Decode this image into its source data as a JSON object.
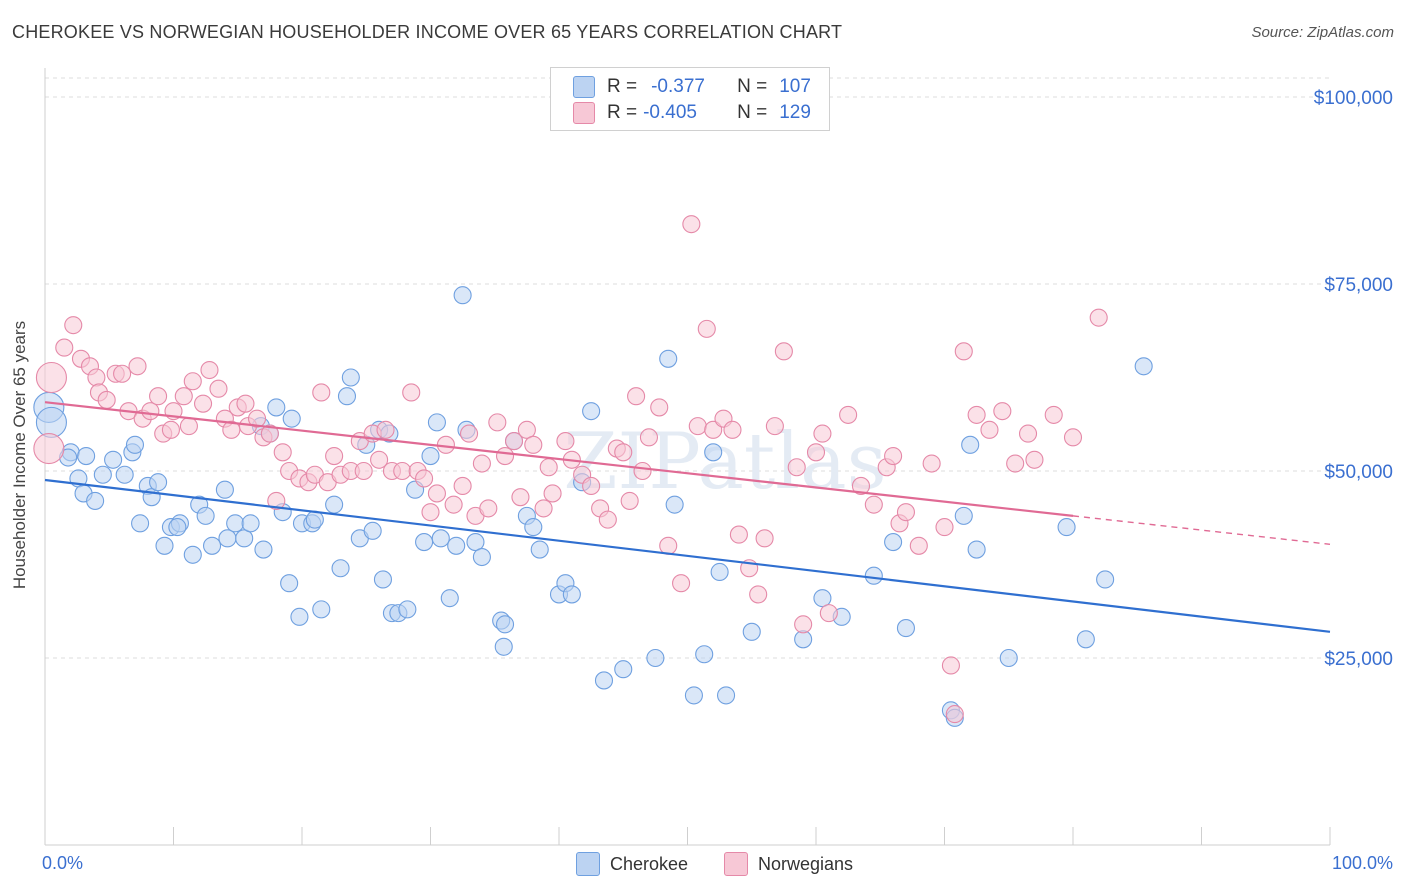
{
  "title": "CHEROKEE VS NORWEGIAN HOUSEHOLDER INCOME OVER 65 YEARS CORRELATION CHART",
  "source": "Source: ZipAtlas.com",
  "watermark": "ZIPatlas",
  "legend": {
    "rows": [
      {
        "r_label": "R =",
        "r_value": "-0.377",
        "n_label": "N =",
        "n_value": "107",
        "color": "#6fa0e0",
        "fill": "#bcd3f2"
      },
      {
        "r_label": "R =",
        "r_value": "-0.405",
        "n_label": "N =",
        "n_value": "129",
        "color": "#e589a8",
        "fill": "#f7c8d6"
      }
    ]
  },
  "bottom_legend": [
    {
      "label": "Cherokee",
      "fill": "#bcd3f2",
      "color": "#6fa0e0"
    },
    {
      "label": "Norwegians",
      "fill": "#f7c8d6",
      "color": "#e589a8"
    }
  ],
  "chart_data": {
    "type": "scatter",
    "title": "CHEROKEE VS NORWEGIAN HOUSEHOLDER INCOME OVER 65 YEARS CORRELATION CHART",
    "xlabel": "",
    "ylabel": "Householder Income Over 65 years",
    "xlim": [
      0,
      100
    ],
    "ylim": [
      0,
      105000
    ],
    "x_tick_labels": [
      "0.0%",
      "100.0%"
    ],
    "y_ticks": [
      25000,
      50000,
      75000,
      100000
    ],
    "y_tick_labels": [
      "$25,000",
      "$50,000",
      "$75,000",
      "$100,000"
    ],
    "series": [
      {
        "name": "Cherokee",
        "color": "#6fa0e0",
        "fill": "#bcd3f2",
        "trend": {
          "x0": 0,
          "y0": 48800,
          "x1": 100,
          "y1": 28500,
          "solid_to": 100
        },
        "points": [
          [
            0.3,
            58500
          ],
          [
            0.5,
            56500
          ],
          [
            2.0,
            52500
          ],
          [
            1.8,
            51800
          ],
          [
            2.6,
            49000
          ],
          [
            3.2,
            52000
          ],
          [
            3.0,
            47000
          ],
          [
            3.9,
            46000
          ],
          [
            4.5,
            49500
          ],
          [
            5.3,
            51500
          ],
          [
            6.2,
            49500
          ],
          [
            6.8,
            52500
          ],
          [
            7.0,
            53500
          ],
          [
            7.4,
            43000
          ],
          [
            8.0,
            48000
          ],
          [
            8.3,
            46500
          ],
          [
            8.8,
            48500
          ],
          [
            9.3,
            40000
          ],
          [
            9.8,
            42500
          ],
          [
            10.5,
            43000
          ],
          [
            10.3,
            42500
          ],
          [
            11.5,
            38800
          ],
          [
            12.0,
            45500
          ],
          [
            12.5,
            44000
          ],
          [
            13.0,
            40000
          ],
          [
            14.0,
            47500
          ],
          [
            14.2,
            41000
          ],
          [
            14.8,
            43000
          ],
          [
            15.5,
            41000
          ],
          [
            16.0,
            43000
          ],
          [
            16.8,
            56000
          ],
          [
            17.0,
            39500
          ],
          [
            17.5,
            55000
          ],
          [
            18.0,
            58500
          ],
          [
            18.5,
            44500
          ],
          [
            19.2,
            57000
          ],
          [
            19.0,
            35000
          ],
          [
            19.8,
            30500
          ],
          [
            20.0,
            43000
          ],
          [
            20.8,
            43000
          ],
          [
            21.0,
            43500
          ],
          [
            21.5,
            31500
          ],
          [
            22.5,
            45500
          ],
          [
            23.0,
            37000
          ],
          [
            23.5,
            60000
          ],
          [
            23.8,
            62500
          ],
          [
            24.5,
            41000
          ],
          [
            25.0,
            53500
          ],
          [
            25.5,
            42000
          ],
          [
            26.0,
            55500
          ],
          [
            26.3,
            35500
          ],
          [
            26.8,
            55000
          ],
          [
            27.0,
            31000
          ],
          [
            27.5,
            31000
          ],
          [
            28.2,
            31500
          ],
          [
            28.8,
            47500
          ],
          [
            29.5,
            40500
          ],
          [
            30.0,
            52000
          ],
          [
            30.5,
            56500
          ],
          [
            30.8,
            41000
          ],
          [
            31.5,
            33000
          ],
          [
            32.0,
            40000
          ],
          [
            32.5,
            73500
          ],
          [
            32.8,
            55500
          ],
          [
            33.5,
            40500
          ],
          [
            34.0,
            38500
          ],
          [
            35.5,
            30000
          ],
          [
            35.7,
            26500
          ],
          [
            35.8,
            29500
          ],
          [
            36.5,
            54000
          ],
          [
            37.5,
            44000
          ],
          [
            38.0,
            42500
          ],
          [
            38.5,
            39500
          ],
          [
            40.0,
            33500
          ],
          [
            40.5,
            35000
          ],
          [
            41.0,
            33500
          ],
          [
            41.8,
            48500
          ],
          [
            42.5,
            58000
          ],
          [
            43.5,
            22000
          ],
          [
            45.0,
            23500
          ],
          [
            47.5,
            25000
          ],
          [
            48.5,
            65000
          ],
          [
            49.0,
            45500
          ],
          [
            50.5,
            20000
          ],
          [
            51.3,
            25500
          ],
          [
            52.0,
            52500
          ],
          [
            52.5,
            36500
          ],
          [
            53.0,
            20000
          ],
          [
            55.0,
            28500
          ],
          [
            59.0,
            27500
          ],
          [
            60.5,
            33000
          ],
          [
            62.0,
            30500
          ],
          [
            64.5,
            36000
          ],
          [
            66.0,
            40500
          ],
          [
            67.0,
            29000
          ],
          [
            70.5,
            18000
          ],
          [
            70.8,
            17000
          ],
          [
            71.5,
            44000
          ],
          [
            72.0,
            53500
          ],
          [
            72.5,
            39500
          ],
          [
            75.0,
            25000
          ],
          [
            79.5,
            42500
          ],
          [
            81.0,
            27500
          ],
          [
            82.5,
            35500
          ],
          [
            85.5,
            64000
          ]
        ]
      },
      {
        "name": "Norwegians",
        "color": "#e589a8",
        "fill": "#f7c8d6",
        "trend": {
          "x0": 0,
          "y0": 59200,
          "x1": 100,
          "y1": 40200,
          "solid_to": 80
        },
        "points": [
          [
            0.3,
            53000
          ],
          [
            0.5,
            62500
          ],
          [
            1.5,
            66500
          ],
          [
            2.2,
            69500
          ],
          [
            2.8,
            65000
          ],
          [
            3.5,
            64000
          ],
          [
            4.0,
            62500
          ],
          [
            4.2,
            60500
          ],
          [
            4.8,
            59500
          ],
          [
            5.5,
            63000
          ],
          [
            6.0,
            63000
          ],
          [
            6.5,
            58000
          ],
          [
            7.2,
            64000
          ],
          [
            7.6,
            57000
          ],
          [
            8.2,
            58000
          ],
          [
            8.8,
            60000
          ],
          [
            9.2,
            55000
          ],
          [
            9.8,
            55500
          ],
          [
            10.0,
            58000
          ],
          [
            10.8,
            60000
          ],
          [
            11.2,
            56000
          ],
          [
            11.5,
            62000
          ],
          [
            12.3,
            59000
          ],
          [
            12.8,
            63500
          ],
          [
            13.5,
            61000
          ],
          [
            14.0,
            57000
          ],
          [
            14.5,
            55500
          ],
          [
            15.0,
            58500
          ],
          [
            15.6,
            59000
          ],
          [
            15.8,
            56000
          ],
          [
            16.5,
            57000
          ],
          [
            17.0,
            54500
          ],
          [
            17.5,
            55000
          ],
          [
            18.0,
            46000
          ],
          [
            18.5,
            52500
          ],
          [
            19.0,
            50000
          ],
          [
            19.8,
            49000
          ],
          [
            20.5,
            48500
          ],
          [
            21.0,
            49500
          ],
          [
            21.5,
            60500
          ],
          [
            22.0,
            48500
          ],
          [
            22.5,
            52000
          ],
          [
            23.0,
            49500
          ],
          [
            23.8,
            50000
          ],
          [
            24.5,
            54000
          ],
          [
            24.8,
            50000
          ],
          [
            25.5,
            55000
          ],
          [
            26.0,
            51500
          ],
          [
            26.5,
            55500
          ],
          [
            27.0,
            50000
          ],
          [
            27.8,
            50000
          ],
          [
            28.5,
            60500
          ],
          [
            29.0,
            50000
          ],
          [
            29.5,
            49000
          ],
          [
            30.0,
            44500
          ],
          [
            30.5,
            47000
          ],
          [
            31.2,
            53500
          ],
          [
            31.8,
            45500
          ],
          [
            32.5,
            48000
          ],
          [
            33.0,
            55000
          ],
          [
            33.5,
            44000
          ],
          [
            34.0,
            51000
          ],
          [
            34.5,
            45000
          ],
          [
            35.2,
            56500
          ],
          [
            35.8,
            52000
          ],
          [
            36.5,
            54000
          ],
          [
            37.0,
            46500
          ],
          [
            37.5,
            55500
          ],
          [
            38.0,
            53500
          ],
          [
            38.8,
            45000
          ],
          [
            39.2,
            50500
          ],
          [
            39.5,
            47000
          ],
          [
            40.5,
            54000
          ],
          [
            41.0,
            51500
          ],
          [
            41.8,
            49500
          ],
          [
            42.5,
            48000
          ],
          [
            43.2,
            45000
          ],
          [
            43.8,
            43500
          ],
          [
            44.5,
            53000
          ],
          [
            45.0,
            52500
          ],
          [
            45.5,
            46000
          ],
          [
            46.0,
            60000
          ],
          [
            46.5,
            50000
          ],
          [
            47.0,
            54500
          ],
          [
            47.8,
            58500
          ],
          [
            48.5,
            40000
          ],
          [
            49.5,
            35000
          ],
          [
            50.3,
            83000
          ],
          [
            50.8,
            56000
          ],
          [
            51.5,
            69000
          ],
          [
            52.0,
            55500
          ],
          [
            52.8,
            57000
          ],
          [
            53.5,
            55500
          ],
          [
            54.0,
            41500
          ],
          [
            54.8,
            37000
          ],
          [
            55.5,
            33500
          ],
          [
            56.0,
            41000
          ],
          [
            56.8,
            56000
          ],
          [
            57.5,
            66000
          ],
          [
            58.5,
            50500
          ],
          [
            59.0,
            29500
          ],
          [
            60.0,
            52500
          ],
          [
            60.5,
            55000
          ],
          [
            61.0,
            31000
          ],
          [
            62.5,
            57500
          ],
          [
            63.5,
            48000
          ],
          [
            64.5,
            45500
          ],
          [
            65.5,
            50500
          ],
          [
            66.0,
            52000
          ],
          [
            66.5,
            43000
          ],
          [
            67.0,
            44500
          ],
          [
            68.0,
            40000
          ],
          [
            69.0,
            51000
          ],
          [
            70.0,
            42500
          ],
          [
            70.5,
            24000
          ],
          [
            70.8,
            17500
          ],
          [
            71.5,
            66000
          ],
          [
            72.5,
            57500
          ],
          [
            73.5,
            55500
          ],
          [
            74.5,
            58000
          ],
          [
            75.5,
            51000
          ],
          [
            76.5,
            55000
          ],
          [
            77.0,
            51500
          ],
          [
            78.5,
            57500
          ],
          [
            80.0,
            54500
          ],
          [
            82.0,
            70500
          ]
        ]
      }
    ]
  }
}
